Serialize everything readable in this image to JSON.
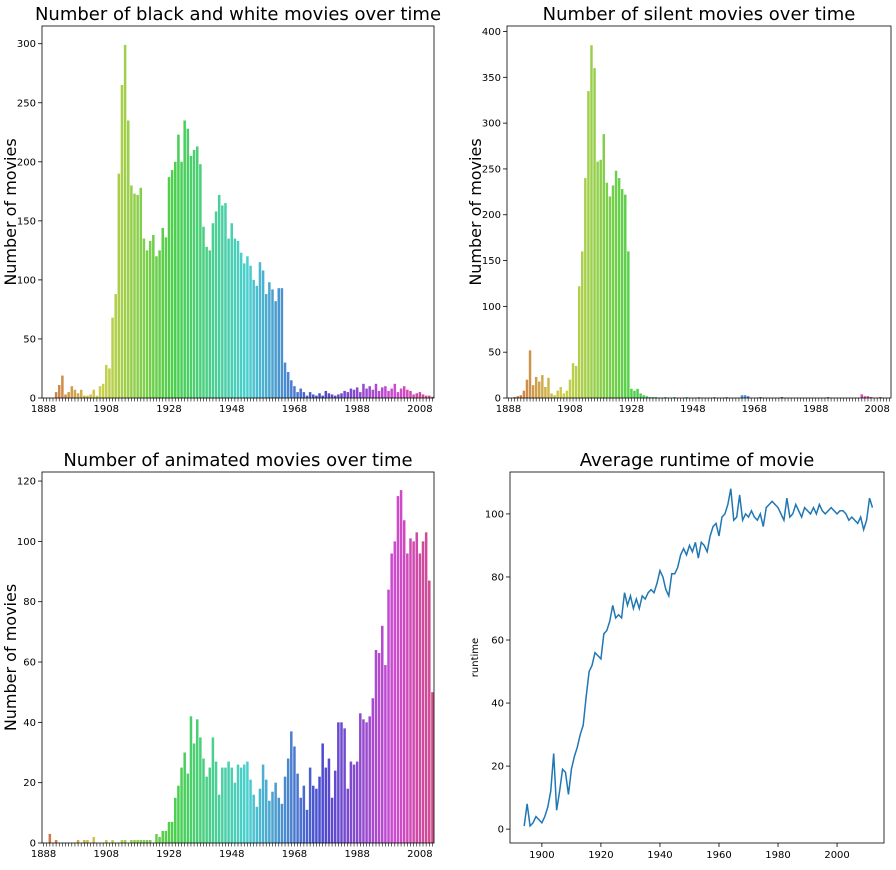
{
  "chart_data": [
    {
      "type": "bar",
      "title": "Number of black and white movies over time",
      "ylabel": "Number of movies",
      "palette": "husl",
      "categories": [
        "1888",
        null,
        null,
        null,
        null,
        null,
        null,
        null,
        null,
        null,
        null,
        null,
        null,
        null,
        null,
        null,
        null,
        null,
        null,
        null,
        "1908",
        null,
        null,
        null,
        null,
        null,
        null,
        null,
        null,
        null,
        null,
        null,
        null,
        null,
        null,
        null,
        null,
        null,
        null,
        null,
        "1928",
        null,
        null,
        null,
        null,
        null,
        null,
        null,
        null,
        null,
        null,
        null,
        null,
        null,
        null,
        null,
        null,
        null,
        null,
        null,
        "1948",
        null,
        null,
        null,
        null,
        null,
        null,
        null,
        null,
        null,
        null,
        null,
        null,
        null,
        null,
        null,
        null,
        null,
        null,
        null,
        "1968",
        null,
        null,
        null,
        null,
        null,
        null,
        null,
        null,
        null,
        null,
        null,
        null,
        null,
        null,
        null,
        null,
        null,
        null,
        null,
        "1988",
        null,
        null,
        null,
        null,
        null,
        null,
        null,
        null,
        null,
        null,
        null,
        null,
        null,
        null,
        null,
        null,
        null,
        null,
        null,
        "2008",
        null,
        null,
        null,
        null
      ],
      "values": [
        0,
        0,
        0,
        0,
        5,
        11,
        19,
        3,
        5,
        10,
        7,
        4,
        7,
        2,
        2,
        3,
        7,
        2,
        10,
        12,
        28,
        25,
        68,
        88,
        190,
        265,
        299,
        235,
        180,
        173,
        172,
        178,
        135,
        125,
        133,
        138,
        120,
        125,
        144,
        136,
        187,
        193,
        200,
        223,
        200,
        235,
        228,
        205,
        210,
        213,
        198,
        145,
        128,
        125,
        148,
        158,
        172,
        163,
        165,
        135,
        148,
        135,
        133,
        123,
        114,
        120,
        112,
        100,
        95,
        115,
        108,
        88,
        98,
        92,
        82,
        93,
        93,
        30,
        22,
        15,
        10,
        5,
        8,
        5,
        2,
        5,
        3,
        2,
        4,
        2,
        6,
        4,
        3,
        2,
        3,
        4,
        6,
        5,
        8,
        7,
        9,
        5,
        12,
        8,
        10,
        7,
        12,
        6,
        9,
        10,
        6,
        8,
        12,
        5,
        8,
        10,
        7,
        6,
        3,
        4,
        5,
        3,
        2,
        2,
        1
      ],
      "ylim": [
        0,
        315
      ],
      "yticks": [
        0,
        50,
        100,
        150,
        200,
        250,
        300
      ]
    },
    {
      "type": "bar",
      "title": "Number of silent movies over time",
      "ylabel": "Number of movies",
      "palette": "husl",
      "categories": [
        "1888",
        null,
        null,
        null,
        null,
        null,
        null,
        null,
        null,
        null,
        null,
        null,
        null,
        null,
        null,
        null,
        null,
        null,
        null,
        null,
        "1908",
        null,
        null,
        null,
        null,
        null,
        null,
        null,
        null,
        null,
        null,
        null,
        null,
        null,
        null,
        null,
        null,
        null,
        null,
        null,
        "1928",
        null,
        null,
        null,
        null,
        null,
        null,
        null,
        null,
        null,
        null,
        null,
        null,
        null,
        null,
        null,
        null,
        null,
        null,
        null,
        "1948",
        null,
        null,
        null,
        null,
        null,
        null,
        null,
        null,
        null,
        null,
        null,
        null,
        null,
        null,
        null,
        null,
        null,
        null,
        null,
        "1968",
        null,
        null,
        null,
        null,
        null,
        null,
        null,
        null,
        null,
        null,
        null,
        null,
        null,
        null,
        null,
        null,
        null,
        null,
        null,
        "1988",
        null,
        null,
        null,
        null,
        null,
        null,
        null,
        null,
        null,
        null,
        null,
        null,
        null,
        null,
        null,
        null,
        null,
        null,
        null,
        "2008",
        null,
        null,
        null,
        null
      ],
      "values": [
        0,
        0,
        1,
        2,
        3,
        8,
        20,
        52,
        14,
        23,
        18,
        25,
        12,
        22,
        5,
        3,
        8,
        12,
        5,
        8,
        20,
        38,
        35,
        122,
        160,
        240,
        335,
        385,
        360,
        258,
        260,
        288,
        235,
        220,
        232,
        248,
        240,
        228,
        222,
        160,
        10,
        8,
        10,
        5,
        3,
        2,
        1,
        1,
        1,
        0,
        0,
        1,
        0,
        0,
        1,
        0,
        0,
        0,
        1,
        0,
        0,
        0,
        1,
        0,
        0,
        0,
        0,
        1,
        0,
        0,
        0,
        1,
        0,
        0,
        0,
        0,
        3,
        3,
        2,
        0,
        0,
        0,
        1,
        0,
        0,
        0,
        0,
        0,
        0,
        1,
        0,
        0,
        0,
        0,
        0,
        0,
        0,
        0,
        0,
        0,
        0,
        0,
        0,
        0,
        1,
        0,
        0,
        0,
        0,
        0,
        0,
        0,
        0,
        0,
        0,
        4,
        2,
        2,
        1,
        0,
        0,
        1,
        0,
        0,
        0
      ],
      "ylim": [
        0,
        406
      ],
      "yticks": [
        0,
        50,
        100,
        150,
        200,
        250,
        300,
        350,
        400
      ]
    },
    {
      "type": "bar",
      "title": "Number of animated movies over time",
      "ylabel": "Number of movies",
      "palette": "husl",
      "categories": [
        "1888",
        null,
        null,
        null,
        null,
        null,
        null,
        null,
        null,
        null,
        null,
        null,
        null,
        null,
        null,
        null,
        null,
        null,
        null,
        null,
        "1908",
        null,
        null,
        null,
        null,
        null,
        null,
        null,
        null,
        null,
        null,
        null,
        null,
        null,
        null,
        null,
        null,
        null,
        null,
        null,
        "1928",
        null,
        null,
        null,
        null,
        null,
        null,
        null,
        null,
        null,
        null,
        null,
        null,
        null,
        null,
        null,
        null,
        null,
        null,
        null,
        "1948",
        null,
        null,
        null,
        null,
        null,
        null,
        null,
        null,
        null,
        null,
        null,
        null,
        null,
        null,
        null,
        null,
        null,
        null,
        null,
        "1968",
        null,
        null,
        null,
        null,
        null,
        null,
        null,
        null,
        null,
        null,
        null,
        null,
        null,
        null,
        null,
        null,
        null,
        null,
        null,
        "1988",
        null,
        null,
        null,
        null,
        null,
        null,
        null,
        null,
        null,
        null,
        null,
        null,
        null,
        null,
        null,
        null,
        null,
        null,
        null,
        "2008",
        null,
        null,
        null,
        null
      ],
      "values": [
        0,
        0,
        3,
        0,
        1,
        0,
        0,
        0,
        0,
        0,
        0,
        1,
        0,
        1,
        1,
        0,
        2,
        0,
        0,
        0,
        1,
        0,
        1,
        0,
        0,
        1,
        1,
        0,
        1,
        1,
        1,
        1,
        1,
        1,
        1,
        0,
        3,
        2,
        4,
        4,
        7,
        7,
        15,
        19,
        25,
        30,
        23,
        42,
        33,
        41,
        35,
        28,
        22,
        25,
        35,
        27,
        16,
        25,
        25,
        27,
        25,
        20,
        26,
        25,
        26,
        27,
        21,
        16,
        12,
        18,
        26,
        21,
        14,
        17,
        20,
        15,
        13,
        22,
        28,
        37,
        32,
        23,
        15,
        19,
        11,
        25,
        19,
        18,
        22,
        33,
        25,
        28,
        15,
        24,
        40,
        40,
        38,
        18,
        27,
        26,
        27,
        43,
        41,
        40,
        42,
        48,
        64,
        63,
        72,
        59,
        84,
        96,
        100,
        115,
        117,
        107,
        96,
        101,
        100,
        103,
        96,
        100,
        103,
        87,
        50
      ],
      "ylim": [
        0,
        123
      ],
      "yticks": [
        0,
        20,
        40,
        60,
        80,
        100,
        120
      ]
    },
    {
      "type": "line",
      "title": "Average runtime of movie",
      "ylabel": "runtime",
      "color": "#1f77b4",
      "x": [
        1894,
        1895,
        1896,
        1897,
        1898,
        1899,
        1900,
        1901,
        1902,
        1903,
        1904,
        1905,
        1906,
        1907,
        1908,
        1909,
        1910,
        1911,
        1912,
        1913,
        1914,
        1915,
        1916,
        1917,
        1918,
        1919,
        1920,
        1921,
        1922,
        1923,
        1924,
        1925,
        1926,
        1927,
        1928,
        1929,
        1930,
        1931,
        1932,
        1933,
        1934,
        1935,
        1936,
        1937,
        1938,
        1939,
        1940,
        1941,
        1942,
        1943,
        1944,
        1945,
        1946,
        1947,
        1948,
        1949,
        1950,
        1951,
        1952,
        1953,
        1954,
        1955,
        1956,
        1957,
        1958,
        1959,
        1960,
        1961,
        1962,
        1963,
        1964,
        1965,
        1966,
        1967,
        1968,
        1969,
        1970,
        1971,
        1972,
        1973,
        1974,
        1975,
        1976,
        1977,
        1978,
        1979,
        1980,
        1981,
        1982,
        1983,
        1984,
        1985,
        1986,
        1987,
        1988,
        1989,
        1990,
        1991,
        1992,
        1993,
        1994,
        1995,
        1996,
        1997,
        1998,
        1999,
        2000,
        2001,
        2002,
        2003,
        2004,
        2005,
        2006,
        2007,
        2008,
        2009,
        2010,
        2011,
        2012
      ],
      "values": [
        1,
        8,
        1,
        2,
        4,
        3,
        2,
        4,
        7,
        12,
        24,
        6,
        12,
        19,
        18,
        11,
        19,
        23,
        26,
        30,
        33,
        42,
        50,
        52,
        56,
        55,
        54,
        62,
        63,
        66,
        71,
        67,
        68,
        67,
        75,
        71,
        74,
        70,
        73,
        70,
        74,
        73,
        75,
        76,
        75,
        78,
        82,
        80,
        76,
        74,
        81,
        81,
        83,
        87,
        89,
        87,
        90,
        88,
        91,
        86,
        91,
        90,
        88,
        93,
        96,
        97,
        93,
        99,
        100,
        103,
        108,
        98,
        99,
        106,
        98,
        100,
        99,
        101,
        99,
        98,
        100,
        96,
        102,
        103,
        104,
        103,
        102,
        100,
        98,
        105,
        99,
        100,
        103,
        101,
        99,
        102,
        101,
        100,
        102,
        100,
        103,
        101,
        100,
        101,
        102,
        101,
        100,
        101,
        101,
        100,
        98,
        99,
        98,
        97,
        99,
        95,
        98,
        105,
        102
      ],
      "xlim": [
        1889.2,
        2015.9
      ],
      "ylim": [
        -4.4,
        113.3
      ],
      "xticks": [
        1900,
        1920,
        1940,
        1960,
        1980,
        2000
      ],
      "yticks": [
        0,
        20,
        40,
        60,
        80,
        100
      ]
    }
  ]
}
